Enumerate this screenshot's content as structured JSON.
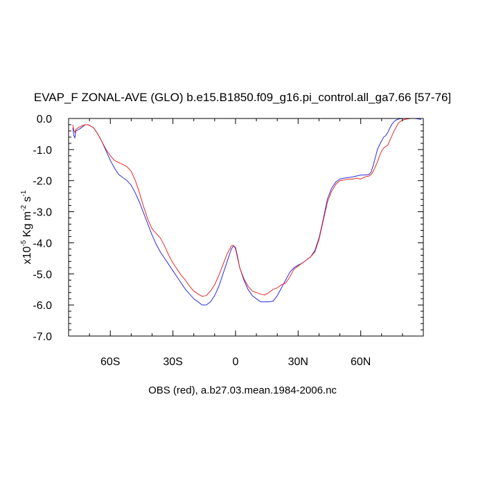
{
  "chart_data": {
    "type": "line",
    "title": "EVAP_F ZONAL-AVE (GLO) b.e15.B1850.f09_g16.pi_control.all_ga7.66 [57-76]",
    "ylabel": {
      "prefix": "x10",
      "exp1": "-5",
      "mid": " Kg m",
      "exp2": "-2",
      "mid2": " s",
      "exp3": "-1"
    },
    "xlabel": "OBS (red), a.b27.03.mean.1984-2006.nc",
    "xlim": [
      -80,
      90
    ],
    "ylim": [
      -7.0,
      0.0
    ],
    "x_ticks": [
      {
        "value": -60,
        "label": "60S"
      },
      {
        "value": -30,
        "label": "30S"
      },
      {
        "value": 0,
        "label": "0"
      },
      {
        "value": 30,
        "label": "30N"
      },
      {
        "value": 60,
        "label": "60N"
      }
    ],
    "y_ticks": [
      {
        "value": 0.0,
        "label": "0.0"
      },
      {
        "value": -1.0,
        "label": "-1.0"
      },
      {
        "value": -2.0,
        "label": "-2.0"
      },
      {
        "value": -3.0,
        "label": "-3.0"
      },
      {
        "value": -4.0,
        "label": "-4.0"
      },
      {
        "value": -5.0,
        "label": "-5.0"
      },
      {
        "value": -6.0,
        "label": "-6.0"
      },
      {
        "value": -7.0,
        "label": "-7.0"
      }
    ],
    "series": [
      {
        "color": "#2a2ad8",
        "points": [
          [
            -78,
            -0.3
          ],
          [
            -77.5,
            -0.55
          ],
          [
            -77,
            -0.62
          ],
          [
            -76.5,
            -0.4
          ],
          [
            -75,
            -0.35
          ],
          [
            -74,
            -0.3
          ],
          [
            -73,
            -0.25
          ],
          [
            -72,
            -0.2
          ],
          [
            -71,
            -0.2
          ],
          [
            -70,
            -0.22
          ],
          [
            -68,
            -0.3
          ],
          [
            -66,
            -0.5
          ],
          [
            -64,
            -0.75
          ],
          [
            -62,
            -1.05
          ],
          [
            -60,
            -1.35
          ],
          [
            -58,
            -1.6
          ],
          [
            -56,
            -1.8
          ],
          [
            -54,
            -1.9
          ],
          [
            -52,
            -2.0
          ],
          [
            -50,
            -2.15
          ],
          [
            -48,
            -2.4
          ],
          [
            -46,
            -2.7
          ],
          [
            -44,
            -3.05
          ],
          [
            -42,
            -3.4
          ],
          [
            -40,
            -3.75
          ],
          [
            -38,
            -4.05
          ],
          [
            -36,
            -4.3
          ],
          [
            -34,
            -4.5
          ],
          [
            -32,
            -4.7
          ],
          [
            -30,
            -4.9
          ],
          [
            -28,
            -5.1
          ],
          [
            -26,
            -5.3
          ],
          [
            -24,
            -5.5
          ],
          [
            -22,
            -5.65
          ],
          [
            -20,
            -5.8
          ],
          [
            -18,
            -5.9
          ],
          [
            -16,
            -6.0
          ],
          [
            -14,
            -6.0
          ],
          [
            -12,
            -5.9
          ],
          [
            -10,
            -5.7
          ],
          [
            -8,
            -5.4
          ],
          [
            -6,
            -5.0
          ],
          [
            -4,
            -4.6
          ],
          [
            -2,
            -4.2
          ],
          [
            -1,
            -4.1
          ],
          [
            0,
            -4.15
          ],
          [
            1,
            -4.45
          ],
          [
            2,
            -4.8
          ],
          [
            4,
            -5.2
          ],
          [
            6,
            -5.5
          ],
          [
            8,
            -5.7
          ],
          [
            10,
            -5.8
          ],
          [
            12,
            -5.9
          ],
          [
            14,
            -5.9
          ],
          [
            16,
            -5.9
          ],
          [
            18,
            -5.88
          ],
          [
            20,
            -5.7
          ],
          [
            22,
            -5.45
          ],
          [
            24,
            -5.2
          ],
          [
            26,
            -4.95
          ],
          [
            28,
            -4.8
          ],
          [
            30,
            -4.72
          ],
          [
            32,
            -4.65
          ],
          [
            34,
            -4.55
          ],
          [
            36,
            -4.45
          ],
          [
            38,
            -4.25
          ],
          [
            40,
            -3.85
          ],
          [
            42,
            -3.25
          ],
          [
            44,
            -2.6
          ],
          [
            46,
            -2.25
          ],
          [
            48,
            -2.05
          ],
          [
            50,
            -1.95
          ],
          [
            52,
            -1.92
          ],
          [
            54,
            -1.9
          ],
          [
            56,
            -1.88
          ],
          [
            58,
            -1.85
          ],
          [
            60,
            -1.82
          ],
          [
            62,
            -1.82
          ],
          [
            64,
            -1.8
          ],
          [
            65,
            -1.72
          ],
          [
            66,
            -1.5
          ],
          [
            67,
            -1.25
          ],
          [
            68,
            -1.0
          ],
          [
            69,
            -0.85
          ],
          [
            70,
            -0.72
          ],
          [
            71,
            -0.6
          ],
          [
            72,
            -0.55
          ],
          [
            73,
            -0.45
          ],
          [
            74,
            -0.3
          ],
          [
            75,
            -0.18
          ],
          [
            76,
            -0.1
          ],
          [
            77,
            -0.05
          ],
          [
            78,
            -0.02
          ],
          [
            80,
            0.0
          ],
          [
            82,
            0.0
          ],
          [
            84,
            0.0
          ],
          [
            86,
            0.0
          ],
          [
            88,
            -0.02
          ],
          [
            89,
            -0.03
          ]
        ]
      },
      {
        "color": "#e42a2a",
        "points": [
          [
            -78,
            -0.2
          ],
          [
            -77.5,
            -0.38
          ],
          [
            -77,
            -0.45
          ],
          [
            -76.5,
            -0.35
          ],
          [
            -75,
            -0.28
          ],
          [
            -74,
            -0.25
          ],
          [
            -73,
            -0.22
          ],
          [
            -72,
            -0.2
          ],
          [
            -71,
            -0.2
          ],
          [
            -70,
            -0.22
          ],
          [
            -68,
            -0.3
          ],
          [
            -66,
            -0.5
          ],
          [
            -64,
            -0.75
          ],
          [
            -62,
            -1.0
          ],
          [
            -60,
            -1.2
          ],
          [
            -58,
            -1.35
          ],
          [
            -56,
            -1.42
          ],
          [
            -54,
            -1.48
          ],
          [
            -52,
            -1.55
          ],
          [
            -50,
            -1.7
          ],
          [
            -48,
            -2.0
          ],
          [
            -46,
            -2.4
          ],
          [
            -44,
            -2.85
          ],
          [
            -42,
            -3.25
          ],
          [
            -40,
            -3.55
          ],
          [
            -38,
            -3.7
          ],
          [
            -36,
            -3.85
          ],
          [
            -34,
            -4.1
          ],
          [
            -32,
            -4.4
          ],
          [
            -30,
            -4.65
          ],
          [
            -28,
            -4.85
          ],
          [
            -26,
            -5.05
          ],
          [
            -24,
            -5.2
          ],
          [
            -22,
            -5.4
          ],
          [
            -20,
            -5.55
          ],
          [
            -18,
            -5.65
          ],
          [
            -16,
            -5.72
          ],
          [
            -14,
            -5.7
          ],
          [
            -12,
            -5.55
          ],
          [
            -10,
            -5.35
          ],
          [
            -8,
            -5.05
          ],
          [
            -6,
            -4.7
          ],
          [
            -4,
            -4.35
          ],
          [
            -2,
            -4.1
          ],
          [
            -1,
            -4.08
          ],
          [
            0,
            -4.2
          ],
          [
            1,
            -4.5
          ],
          [
            2,
            -4.8
          ],
          [
            4,
            -5.15
          ],
          [
            6,
            -5.4
          ],
          [
            8,
            -5.55
          ],
          [
            10,
            -5.6
          ],
          [
            12,
            -5.65
          ],
          [
            14,
            -5.68
          ],
          [
            16,
            -5.6
          ],
          [
            18,
            -5.5
          ],
          [
            20,
            -5.45
          ],
          [
            22,
            -5.35
          ],
          [
            24,
            -5.3
          ],
          [
            26,
            -5.1
          ],
          [
            28,
            -4.85
          ],
          [
            30,
            -4.75
          ],
          [
            32,
            -4.65
          ],
          [
            34,
            -4.55
          ],
          [
            36,
            -4.45
          ],
          [
            38,
            -4.3
          ],
          [
            40,
            -3.9
          ],
          [
            42,
            -3.3
          ],
          [
            44,
            -2.7
          ],
          [
            46,
            -2.35
          ],
          [
            48,
            -2.12
          ],
          [
            50,
            -2.0
          ],
          [
            52,
            -1.98
          ],
          [
            54,
            -1.95
          ],
          [
            56,
            -1.95
          ],
          [
            58,
            -1.92
          ],
          [
            60,
            -1.95
          ],
          [
            62,
            -1.88
          ],
          [
            64,
            -1.85
          ],
          [
            65,
            -1.8
          ],
          [
            66,
            -1.7
          ],
          [
            67,
            -1.55
          ],
          [
            68,
            -1.4
          ],
          [
            69,
            -1.2
          ],
          [
            70,
            -1.05
          ],
          [
            71,
            -0.95
          ],
          [
            72,
            -0.9
          ],
          [
            73,
            -0.85
          ],
          [
            74,
            -0.7
          ],
          [
            75,
            -0.55
          ],
          [
            76,
            -0.4
          ],
          [
            77,
            -0.28
          ],
          [
            78,
            -0.15
          ],
          [
            80,
            -0.05
          ],
          [
            82,
            -0.02
          ],
          [
            84,
            0.0
          ],
          [
            86,
            0.0
          ],
          [
            88,
            0.0
          ],
          [
            89,
            0.0
          ]
        ]
      }
    ]
  }
}
